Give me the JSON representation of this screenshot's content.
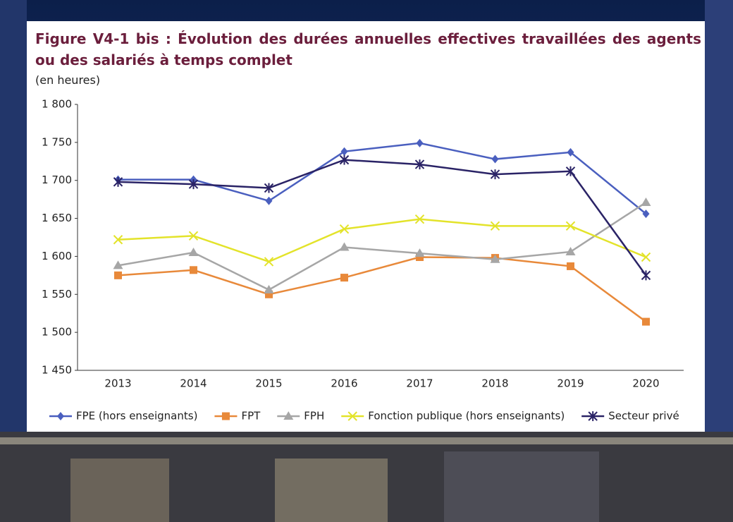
{
  "chart_data": {
    "type": "line",
    "title": "Figure V4-1 bis : Évolution des durées annuelles effectives travaillées des agents ou des salariés à temps complet",
    "subtitle": "(en heures)",
    "categories": [
      "2013",
      "2014",
      "2015",
      "2016",
      "2017",
      "2018",
      "2019",
      "2020"
    ],
    "ylim": [
      1450,
      1800
    ],
    "yticks": [
      {
        "value": 1450,
        "label": "1 450"
      },
      {
        "value": 1500,
        "label": "1 500"
      },
      {
        "value": 1550,
        "label": "1 550"
      },
      {
        "value": 1600,
        "label": "1 600"
      },
      {
        "value": 1650,
        "label": "1 650"
      },
      {
        "value": 1700,
        "label": "1 700"
      },
      {
        "value": 1750,
        "label": "1 750"
      },
      {
        "value": 1800,
        "label": "1 800"
      }
    ],
    "grid": false,
    "legend": "bottom",
    "series": [
      {
        "name": "FPE (hors enseignants)",
        "color": "#4a5fbf",
        "marker": "diamond",
        "values": [
          1701,
          1701,
          1673,
          1738,
          1749,
          1728,
          1737,
          1656
        ]
      },
      {
        "name": "FPT",
        "color": "#e8893a",
        "marker": "square",
        "values": [
          1575,
          1582,
          1550,
          1572,
          1599,
          1598,
          1587,
          1514
        ]
      },
      {
        "name": "FPH",
        "color": "#a6a6a6",
        "marker": "triangle",
        "values": [
          1588,
          1605,
          1556,
          1612,
          1604,
          1596,
          1606,
          1671
        ]
      },
      {
        "name": "Fonction publique (hors enseignants)",
        "color": "#e3e32a",
        "marker": "x",
        "values": [
          1622,
          1627,
          1593,
          1636,
          1649,
          1640,
          1640,
          1599
        ]
      },
      {
        "name": "Secteur privé",
        "color": "#2a2366",
        "marker": "star",
        "values": [
          1698,
          1695,
          1690,
          1727,
          1721,
          1708,
          1712,
          1575
        ]
      }
    ]
  }
}
